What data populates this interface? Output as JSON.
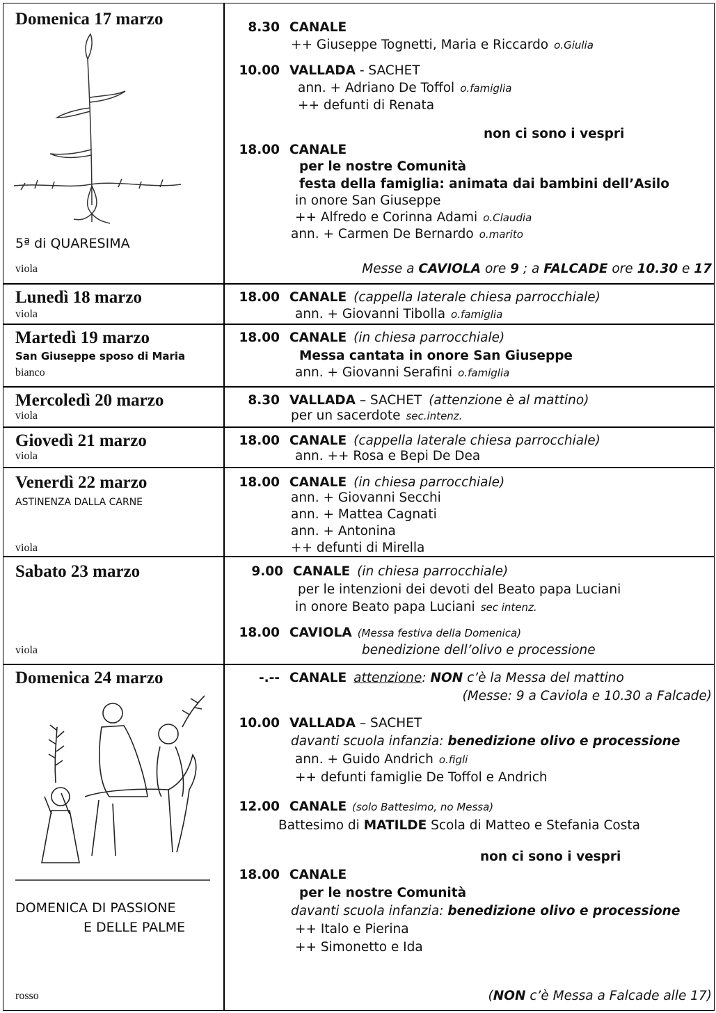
{
  "rows": [
    {
      "day": "Domenica 17 marzo",
      "note": "5ª di QUARESIMA",
      "color": "viola",
      "lines": [
        [
          "8.30",
          "CANALE"
        ],
        [
          "++ Giuseppe Tognetti, Maria e Riccardo",
          "o.Giulia"
        ],
        [
          "10.00",
          "VALLADA",
          " - SACHET"
        ],
        [
          "ann. + Adriano De Toffol",
          "o.famiglia"
        ],
        [
          "++ defunti di Renata"
        ],
        [
          "non ci sono i vespri"
        ],
        [
          "18.00",
          "CANALE"
        ],
        [
          "per le nostre Comunità"
        ],
        [
          "festa della famiglia: animata dai bambini dell’Asilo"
        ],
        [
          "in onore San Giuseppe"
        ],
        [
          "++ Alfredo e Corinna Adami",
          "o.Claudia"
        ],
        [
          "ann. + Carmen De Bernardo",
          "o.marito"
        ],
        [
          "Messe a ",
          "CAVIOLA",
          " ore ",
          "9",
          " ; a ",
          "FALCADE",
          " ore ",
          "10.30",
          " e ",
          "17"
        ]
      ]
    },
    {
      "day": "Lunedì 18 marzo",
      "color": "viola",
      "lines": [
        [
          "18.00",
          "CANALE",
          "(cappella laterale chiesa parrocchiale)"
        ],
        [
          "ann. + Giovanni Tibolla",
          "o.famiglia"
        ]
      ]
    },
    {
      "day": "Martedì 19 marzo",
      "note": "San Giuseppe sposo di Maria",
      "color": "bianco",
      "lines": [
        [
          "18.00",
          "CANALE",
          "(in chiesa parrocchiale)"
        ],
        [
          "Messa cantata in onore San Giuseppe"
        ],
        [
          "ann. + Giovanni Serafini",
          "o.famiglia"
        ]
      ]
    },
    {
      "day": "Mercoledì 20 marzo",
      "color": "viola",
      "lines": [
        [
          "8.30",
          "VALLADA",
          " – SACHET",
          "(attenzione è al mattino)"
        ],
        [
          "per un sacerdote",
          "sec.intenz."
        ]
      ]
    },
    {
      "day": "Giovedì 21 marzo",
      "color": "viola",
      "lines": [
        [
          "18.00",
          "CANALE",
          "(cappella laterale chiesa parrocchiale)"
        ],
        [
          "ann. ++ Rosa e Bepi De Dea"
        ]
      ]
    },
    {
      "day": "Venerdì 22 marzo",
      "note": "ASTINENZA DALLA CARNE",
      "color": "viola",
      "lines": [
        [
          "18.00",
          "CANALE",
          "(in chiesa parrocchiale)"
        ],
        [
          "ann. + Giovanni Secchi"
        ],
        [
          "ann. + Mattea Cagnati"
        ],
        [
          "ann. + Antonina"
        ],
        [
          "++ defunti di Mirella"
        ]
      ]
    },
    {
      "day": "Sabato 23 marzo",
      "color": "viola",
      "lines": [
        [
          "9.00",
          "CANALE",
          "(in chiesa parrocchiale)"
        ],
        [
          "per le intenzioni dei devoti del Beato papa Luciani"
        ],
        [
          "in onore Beato papa Luciani",
          "sec intenz."
        ],
        [
          "18.00",
          "CAVIOLA",
          "(Messa festiva della Domenica)"
        ],
        [
          "benedizione dell’olivo e processione"
        ]
      ]
    },
    {
      "day": "Domenica 24 marzo",
      "note": [
        "DOMENICA DI PASSIONE",
        "E DELLE PALME"
      ],
      "color": "rosso",
      "lines": [
        [
          "-.--",
          "CANALE",
          "attenzione",
          ": ",
          "NON",
          " c’è la Messa del mattino"
        ],
        [
          "(Messe: 9 a Caviola e 10.30 a Falcade)"
        ],
        [
          "10.00",
          "VALLADA",
          " – SACHET"
        ],
        [
          "davanti scuola infanzia: ",
          "benedizione olivo e processione"
        ],
        [
          "ann. + Guido Andrich",
          "o.figli"
        ],
        [
          "++ defunti famiglie De Toffol e Andrich"
        ],
        [
          "12.00",
          "CANALE",
          "(solo Battesimo, no Messa)"
        ],
        [
          "Battesimo di ",
          "MATILDE",
          " Scola di Matteo e Stefania Costa"
        ],
        [
          "non ci sono i vespri"
        ],
        [
          "18.00",
          "CANALE"
        ],
        [
          "per le nostre Comunità"
        ],
        [
          "davanti scuola infanzia: ",
          "benedizione olivo e processione"
        ],
        [
          "++ Italo e Pierina"
        ],
        [
          "++ Simonetto e Ida"
        ],
        [
          "(",
          "NON",
          " c’è Messa a Falcade alle 17)"
        ]
      ]
    }
  ]
}
